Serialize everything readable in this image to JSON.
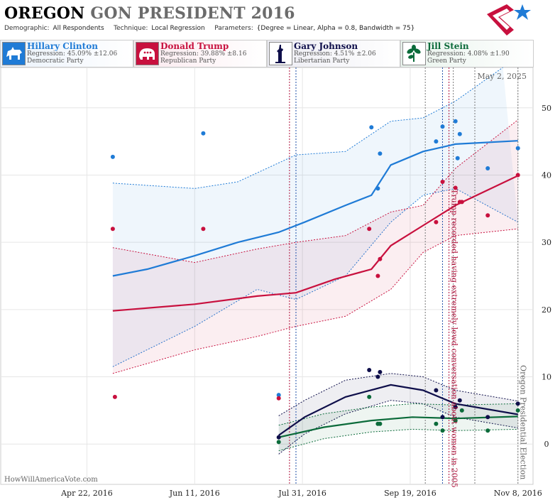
{
  "header": {
    "title_state": "OREGON",
    "title_rest": "GON PRESIDENT 2016",
    "demographic_label": "Demographic:",
    "demographic_value": "All Respondents",
    "technique_label": "Technique:",
    "technique_value": "Local Regression",
    "parameters_label": "Parameters:",
    "parameters_value": "{Degree = Linear, Alpha = 0.8, Bandwidth = 75}"
  },
  "candidates": [
    {
      "name": "Hillary Clinton",
      "regression": "Regression: 45.09% ±12.06",
      "party": "Democratic Party",
      "color": "#1f7bd6",
      "bg": "#eaf2fb",
      "icon": "donkey-icon"
    },
    {
      "name": "Donald Trump",
      "regression": "Regression: 39.88% ±8.16",
      "party": "Republican Party",
      "color": "#c8103e",
      "bg": "#fbe9ee",
      "icon": "elephant-icon"
    },
    {
      "name": "Gary Johnson",
      "regression": "Regression: 4.51% ±2.06",
      "party": "Libertarian Party",
      "color": "#0e0e4a",
      "bg": "#ececf3",
      "icon": "statue-of-liberty-icon"
    },
    {
      "name": "Jill Stein",
      "regression": "Regression: 4.08% ±1.90",
      "party": "Green Party",
      "color": "#0b6b3a",
      "bg": "#e8f3ec",
      "icon": "plant-icon"
    }
  ],
  "chart_data": {
    "type": "scatter",
    "x_axis": {
      "type": "date",
      "range": [
        "2016-03-13",
        "2016-11-15"
      ],
      "ticks": [
        "Apr 22, 2016",
        "Jun 11, 2016",
        "Jul 31, 2016",
        "Sep 19, 2016",
        "Nov 8, 2016"
      ]
    },
    "y_axis": {
      "range": [
        -6,
        56
      ],
      "ticks": [
        0,
        10,
        20,
        30,
        40,
        50
      ],
      "position": "right"
    },
    "date_stamp": "May 2, 2025",
    "watermark": "HowWillAmericaVote.com",
    "annotations": [
      {
        "date": "2016-10-07",
        "text": "Trump recorded having extremely lewd conversation about women in 2005",
        "color": "#b0103a"
      },
      {
        "date": "2016-11-08",
        "text": "Oregon Presidential Election",
        "color": "#666666"
      }
    ],
    "event_lines": [
      {
        "date": "2016-07-25",
        "color": "#b0103a"
      },
      {
        "date": "2016-07-28",
        "color": "#1f4fa8"
      },
      {
        "date": "2016-09-26",
        "color": "#777777"
      },
      {
        "date": "2016-10-04",
        "color": "#1f4fa8"
      },
      {
        "date": "2016-10-07",
        "color": "#b0103a"
      },
      {
        "date": "2016-10-09",
        "color": "#777777"
      },
      {
        "date": "2016-10-19",
        "color": "#777777"
      },
      {
        "date": "2016-11-08",
        "color": "#777777"
      }
    ],
    "series": [
      {
        "name": "Hillary Clinton",
        "color": "#1f7bd6",
        "points": [
          [
            "2016-05-04",
            42.7
          ],
          [
            "2016-06-15",
            46.2
          ],
          [
            "2016-07-20",
            7.3
          ],
          [
            "2016-09-01",
            47.1
          ],
          [
            "2016-09-05",
            43.2
          ],
          [
            "2016-09-04",
            38.0
          ],
          [
            "2016-10-01",
            45.0
          ],
          [
            "2016-10-04",
            47.2
          ],
          [
            "2016-10-10",
            48.0
          ],
          [
            "2016-10-11",
            42.5
          ],
          [
            "2016-10-12",
            46.1
          ],
          [
            "2016-10-25",
            41.0
          ],
          [
            "2016-11-08",
            44.0
          ]
        ],
        "trend": [
          [
            "2016-05-04",
            25.0
          ],
          [
            "2016-05-20",
            26.0
          ],
          [
            "2016-06-11",
            28.0
          ],
          [
            "2016-07-01",
            30.0
          ],
          [
            "2016-07-20",
            31.5
          ],
          [
            "2016-08-01",
            33.0
          ],
          [
            "2016-08-20",
            35.5
          ],
          [
            "2016-09-01",
            37.0
          ],
          [
            "2016-09-10",
            41.5
          ],
          [
            "2016-09-25",
            43.5
          ],
          [
            "2016-10-10",
            44.6
          ],
          [
            "2016-11-08",
            45.1
          ]
        ],
        "upper": [
          [
            "2016-05-04",
            38.8
          ],
          [
            "2016-06-11",
            38.0
          ],
          [
            "2016-07-01",
            39.0
          ],
          [
            "2016-07-28",
            43.0
          ],
          [
            "2016-08-20",
            43.5
          ],
          [
            "2016-09-10",
            48.0
          ],
          [
            "2016-09-25",
            48.5
          ],
          [
            "2016-10-10",
            51.0
          ],
          [
            "2016-11-01",
            56.0
          ]
        ],
        "lower": [
          [
            "2016-05-04",
            11.5
          ],
          [
            "2016-06-11",
            17.5
          ],
          [
            "2016-07-10",
            23.0
          ],
          [
            "2016-07-22",
            22.0
          ],
          [
            "2016-07-28",
            21.5
          ],
          [
            "2016-08-20",
            25.0
          ],
          [
            "2016-09-10",
            33.0
          ],
          [
            "2016-09-25",
            37.0
          ],
          [
            "2016-10-10",
            38.0
          ],
          [
            "2016-11-08",
            33.0
          ]
        ]
      },
      {
        "name": "Donald Trump",
        "color": "#c8103e",
        "points": [
          [
            "2016-05-04",
            32.0
          ],
          [
            "2016-05-05",
            7.0
          ],
          [
            "2016-06-15",
            32.0
          ],
          [
            "2016-07-20",
            6.8
          ],
          [
            "2016-08-31",
            32.0
          ],
          [
            "2016-09-04",
            25.0
          ],
          [
            "2016-09-05",
            27.5
          ],
          [
            "2016-10-01",
            33.0
          ],
          [
            "2016-10-04",
            39.0
          ],
          [
            "2016-10-10",
            38.1
          ],
          [
            "2016-10-12",
            36.0
          ],
          [
            "2016-10-13",
            36.0
          ],
          [
            "2016-10-25",
            34.0
          ],
          [
            "2016-11-08",
            40.0
          ]
        ],
        "trend": [
          [
            "2016-05-04",
            19.8
          ],
          [
            "2016-06-11",
            20.8
          ],
          [
            "2016-07-10",
            22.0
          ],
          [
            "2016-07-28",
            22.5
          ],
          [
            "2016-08-15",
            24.5
          ],
          [
            "2016-09-01",
            26.0
          ],
          [
            "2016-09-10",
            29.5
          ],
          [
            "2016-09-25",
            32.5
          ],
          [
            "2016-10-10",
            35.5
          ],
          [
            "2016-11-08",
            39.9
          ]
        ],
        "upper": [
          [
            "2016-05-04",
            29.2
          ],
          [
            "2016-06-11",
            27.0
          ],
          [
            "2016-07-10",
            29.0
          ],
          [
            "2016-07-28",
            30.0
          ],
          [
            "2016-08-20",
            31.0
          ],
          [
            "2016-09-10",
            34.5
          ],
          [
            "2016-09-25",
            35.5
          ],
          [
            "2016-10-10",
            41.0
          ],
          [
            "2016-11-08",
            48.2
          ]
        ],
        "lower": [
          [
            "2016-05-04",
            10.5
          ],
          [
            "2016-06-11",
            14.0
          ],
          [
            "2016-07-10",
            16.0
          ],
          [
            "2016-07-28",
            17.5
          ],
          [
            "2016-08-20",
            19.0
          ],
          [
            "2016-09-10",
            23.0
          ],
          [
            "2016-09-25",
            28.5
          ],
          [
            "2016-10-10",
            31.0
          ],
          [
            "2016-11-08",
            32.0
          ]
        ]
      },
      {
        "name": "Gary Johnson",
        "color": "#0e0e4a",
        "points": [
          [
            "2016-07-20",
            1.0
          ],
          [
            "2016-08-31",
            11.0
          ],
          [
            "2016-09-04",
            10.0
          ],
          [
            "2016-09-05",
            10.7
          ],
          [
            "2016-10-01",
            8.0
          ],
          [
            "2016-10-04",
            4.0
          ],
          [
            "2016-10-10",
            5.5
          ],
          [
            "2016-10-12",
            6.5
          ],
          [
            "2016-10-25",
            4.0
          ],
          [
            "2016-11-08",
            6.0
          ]
        ],
        "trend": [
          [
            "2016-07-20",
            1.3
          ],
          [
            "2016-08-01",
            4.0
          ],
          [
            "2016-08-20",
            7.0
          ],
          [
            "2016-09-10",
            8.8
          ],
          [
            "2016-09-25",
            8.0
          ],
          [
            "2016-10-10",
            6.0
          ],
          [
            "2016-11-08",
            4.4
          ]
        ],
        "upper": [
          [
            "2016-07-20",
            4.2
          ],
          [
            "2016-08-01",
            6.5
          ],
          [
            "2016-08-20",
            9.5
          ],
          [
            "2016-09-10",
            10.5
          ],
          [
            "2016-09-25",
            10.0
          ],
          [
            "2016-10-10",
            8.0
          ],
          [
            "2016-11-08",
            6.4
          ]
        ],
        "lower": [
          [
            "2016-07-20",
            -1.5
          ],
          [
            "2016-08-01",
            1.5
          ],
          [
            "2016-08-20",
            4.5
          ],
          [
            "2016-09-10",
            6.5
          ],
          [
            "2016-09-25",
            6.0
          ],
          [
            "2016-10-10",
            4.0
          ],
          [
            "2016-11-08",
            2.4
          ]
        ]
      },
      {
        "name": "Jill Stein",
        "color": "#0b6b3a",
        "points": [
          [
            "2016-07-20",
            0.3
          ],
          [
            "2016-08-31",
            7.0
          ],
          [
            "2016-09-04",
            3.0
          ],
          [
            "2016-09-05",
            3.0
          ],
          [
            "2016-10-01",
            3.0
          ],
          [
            "2016-10-04",
            2.0
          ],
          [
            "2016-10-10",
            3.5
          ],
          [
            "2016-10-13",
            5.0
          ],
          [
            "2016-10-25",
            2.0
          ],
          [
            "2016-11-08",
            5.0
          ]
        ],
        "trend": [
          [
            "2016-07-20",
            1.0
          ],
          [
            "2016-08-10",
            2.5
          ],
          [
            "2016-09-01",
            3.5
          ],
          [
            "2016-09-20",
            4.0
          ],
          [
            "2016-10-10",
            3.8
          ],
          [
            "2016-11-08",
            4.1
          ]
        ],
        "upper": [
          [
            "2016-07-20",
            2.8
          ],
          [
            "2016-08-10",
            4.5
          ],
          [
            "2016-09-01",
            5.5
          ],
          [
            "2016-09-20",
            6.0
          ],
          [
            "2016-10-10",
            5.8
          ],
          [
            "2016-11-08",
            6.0
          ]
        ],
        "lower": [
          [
            "2016-07-20",
            -1.0
          ],
          [
            "2016-08-10",
            0.8
          ],
          [
            "2016-09-01",
            1.8
          ],
          [
            "2016-09-20",
            2.2
          ],
          [
            "2016-10-10",
            2.0
          ],
          [
            "2016-11-08",
            2.2
          ]
        ]
      }
    ]
  }
}
